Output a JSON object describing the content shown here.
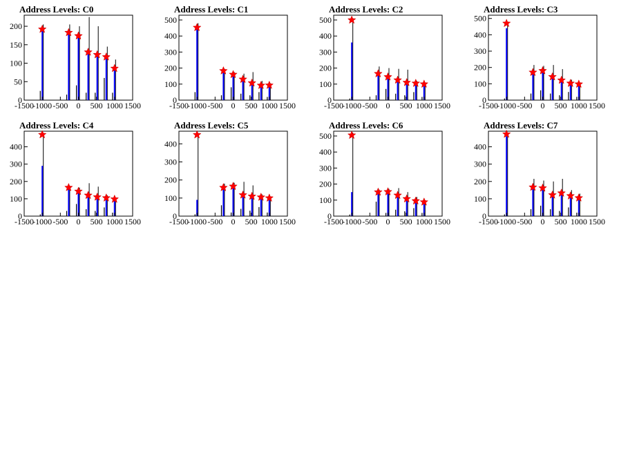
{
  "figure": {
    "background": "#ffffff",
    "histogram_color": "#0000ff",
    "histogram_outline_color": "#000000",
    "peak_marker_color": "#ff0000"
  },
  "chart_data": [
    {
      "type": "bar",
      "title": "Address Levels: C0",
      "xlim": [
        -1500,
        1500
      ],
      "ylim": [
        0,
        230
      ],
      "xticks": [
        -1500,
        -1000,
        -500,
        0,
        500,
        1000,
        1500
      ],
      "yticks": [
        0,
        50,
        100,
        150,
        200
      ],
      "bars": [
        {
          "x": -1000,
          "blue": 190,
          "black": 205,
          "left": 25
        },
        {
          "x": -270,
          "blue": 185,
          "black": 205,
          "left": 15
        },
        {
          "x": 0,
          "blue": 175,
          "black": 200,
          "left": 40
        },
        {
          "x": 270,
          "blue": 130,
          "black": 225,
          "left": 20
        },
        {
          "x": 520,
          "blue": 120,
          "black": 200,
          "left": 20
        },
        {
          "x": 770,
          "blue": 115,
          "black": 145,
          "left": 60
        },
        {
          "x": 1000,
          "blue": 85,
          "black": 110,
          "left": 20
        }
      ],
      "peaks": [
        {
          "x": -1000,
          "y": 192
        },
        {
          "x": -270,
          "y": 183
        },
        {
          "x": 0,
          "y": 174
        },
        {
          "x": 270,
          "y": 130
        },
        {
          "x": 520,
          "y": 123
        },
        {
          "x": 770,
          "y": 117
        },
        {
          "x": 1000,
          "y": 86
        }
      ]
    },
    {
      "type": "bar",
      "title": "Address Levels: C1",
      "xlim": [
        -1500,
        1500
      ],
      "ylim": [
        0,
        530
      ],
      "xticks": [
        -1500,
        -1000,
        -500,
        0,
        500,
        1000,
        1500
      ],
      "yticks": [
        0,
        100,
        200,
        300,
        400,
        500
      ],
      "bars": [
        {
          "x": -1000,
          "blue": 450,
          "black": 480,
          "left": 50
        },
        {
          "x": -270,
          "blue": 175,
          "black": 195,
          "left": 30
        },
        {
          "x": 0,
          "blue": 155,
          "black": 175,
          "left": 80
        },
        {
          "x": 270,
          "blue": 125,
          "black": 165,
          "left": 40
        },
        {
          "x": 520,
          "blue": 100,
          "black": 175,
          "left": 30
        },
        {
          "x": 770,
          "blue": 90,
          "black": 120,
          "left": 50
        },
        {
          "x": 1000,
          "blue": 90,
          "black": 105,
          "left": 20
        }
      ],
      "peaks": [
        {
          "x": -1000,
          "y": 453
        },
        {
          "x": -270,
          "y": 183
        },
        {
          "x": 0,
          "y": 160
        },
        {
          "x": 270,
          "y": 130
        },
        {
          "x": 520,
          "y": 107
        },
        {
          "x": 770,
          "y": 92
        },
        {
          "x": 1000,
          "y": 93
        }
      ]
    },
    {
      "type": "bar",
      "title": "Address Levels: C2",
      "xlim": [
        -1500,
        1500
      ],
      "ylim": [
        0,
        530
      ],
      "xticks": [
        -1500,
        -1000,
        -500,
        0,
        500,
        1000,
        1500
      ],
      "yticks": [
        0,
        100,
        200,
        300,
        400,
        500
      ],
      "bars": [
        {
          "x": -1000,
          "blue": 360,
          "black": 510,
          "left": 10
        },
        {
          "x": -270,
          "blue": 160,
          "black": 210,
          "left": 30
        },
        {
          "x": 0,
          "blue": 140,
          "black": 200,
          "left": 70
        },
        {
          "x": 270,
          "blue": 120,
          "black": 195,
          "left": 40
        },
        {
          "x": 520,
          "blue": 110,
          "black": 190,
          "left": 30
        },
        {
          "x": 770,
          "blue": 100,
          "black": 120,
          "left": 50
        },
        {
          "x": 1000,
          "blue": 95,
          "black": 105,
          "left": 20
        }
      ],
      "peaks": [
        {
          "x": -1000,
          "y": 500
        },
        {
          "x": -270,
          "y": 165
        },
        {
          "x": 0,
          "y": 145
        },
        {
          "x": 270,
          "y": 125
        },
        {
          "x": 520,
          "y": 110
        },
        {
          "x": 770,
          "y": 105
        },
        {
          "x": 1000,
          "y": 100
        }
      ]
    },
    {
      "type": "bar",
      "title": "Address Levels: C3",
      "xlim": [
        -1500,
        1500
      ],
      "ylim": [
        0,
        520
      ],
      "xticks": [
        -1500,
        -1000,
        -500,
        0,
        500,
        1000,
        1500
      ],
      "yticks": [
        0,
        100,
        200,
        300,
        400,
        500
      ],
      "bars": [
        {
          "x": -1000,
          "blue": 440,
          "black": 480,
          "left": 10
        },
        {
          "x": -270,
          "blue": 165,
          "black": 215,
          "left": 40
        },
        {
          "x": 0,
          "blue": 180,
          "black": 210,
          "left": 60
        },
        {
          "x": 270,
          "blue": 140,
          "black": 215,
          "left": 40
        },
        {
          "x": 520,
          "blue": 120,
          "black": 190,
          "left": 30
        },
        {
          "x": 770,
          "blue": 100,
          "black": 125,
          "left": 50
        },
        {
          "x": 1000,
          "blue": 95,
          "black": 105,
          "left": 20
        }
      ],
      "peaks": [
        {
          "x": -1000,
          "y": 470
        },
        {
          "x": -270,
          "y": 170
        },
        {
          "x": 0,
          "y": 180
        },
        {
          "x": 270,
          "y": 143
        },
        {
          "x": 520,
          "y": 122
        },
        {
          "x": 770,
          "y": 103
        },
        {
          "x": 1000,
          "y": 98
        }
      ]
    },
    {
      "type": "bar",
      "title": "Address Levels: C4",
      "xlim": [
        -1500,
        1500
      ],
      "ylim": [
        0,
        490
      ],
      "xticks": [
        -1500,
        -1000,
        -500,
        0,
        500,
        1000,
        1500
      ],
      "yticks": [
        0,
        100,
        200,
        300,
        400
      ],
      "bars": [
        {
          "x": -1000,
          "blue": 290,
          "black": 480,
          "left": 10
        },
        {
          "x": -270,
          "blue": 160,
          "black": 175,
          "left": 30
        },
        {
          "x": 0,
          "blue": 140,
          "black": 165,
          "left": 70
        },
        {
          "x": 270,
          "blue": 120,
          "black": 190,
          "left": 40
        },
        {
          "x": 520,
          "blue": 110,
          "black": 170,
          "left": 30
        },
        {
          "x": 770,
          "blue": 100,
          "black": 120,
          "left": 50
        },
        {
          "x": 1000,
          "blue": 90,
          "black": 105,
          "left": 20
        }
      ],
      "peaks": [
        {
          "x": -1000,
          "y": 470
        },
        {
          "x": -270,
          "y": 165
        },
        {
          "x": 0,
          "y": 143
        },
        {
          "x": 270,
          "y": 120
        },
        {
          "x": 520,
          "y": 110
        },
        {
          "x": 770,
          "y": 105
        },
        {
          "x": 1000,
          "y": 98
        }
      ]
    },
    {
      "type": "bar",
      "title": "Address Levels: C5",
      "xlim": [
        -1500,
        1500
      ],
      "ylim": [
        0,
        470
      ],
      "xticks": [
        -1500,
        -1000,
        -500,
        0,
        500,
        1000,
        1500
      ],
      "yticks": [
        0,
        100,
        200,
        300,
        400
      ],
      "bars": [
        {
          "x": -1000,
          "blue": 90,
          "black": 460,
          "left": 10
        },
        {
          "x": -270,
          "blue": 150,
          "black": 180,
          "left": 60
        },
        {
          "x": 0,
          "blue": 160,
          "black": 185,
          "left": 20
        },
        {
          "x": 270,
          "blue": 110,
          "black": 190,
          "left": 40
        },
        {
          "x": 520,
          "blue": 105,
          "black": 170,
          "left": 30
        },
        {
          "x": 770,
          "blue": 100,
          "black": 120,
          "left": 50
        },
        {
          "x": 1000,
          "blue": 95,
          "black": 105,
          "left": 20
        }
      ],
      "peaks": [
        {
          "x": -1000,
          "y": 450
        },
        {
          "x": -270,
          "y": 158
        },
        {
          "x": 0,
          "y": 165
        },
        {
          "x": 270,
          "y": 117
        },
        {
          "x": 520,
          "y": 110
        },
        {
          "x": 770,
          "y": 105
        },
        {
          "x": 1000,
          "y": 100
        }
      ]
    },
    {
      "type": "bar",
      "title": "Address Levels: C6",
      "xlim": [
        -1500,
        1500
      ],
      "ylim": [
        0,
        530
      ],
      "xticks": [
        -1500,
        -1000,
        -500,
        0,
        500,
        1000,
        1500
      ],
      "yticks": [
        0,
        100,
        200,
        300,
        400,
        500
      ],
      "bars": [
        {
          "x": -1000,
          "blue": 150,
          "black": 520,
          "left": 10
        },
        {
          "x": -270,
          "blue": 140,
          "black": 165,
          "left": 90
        },
        {
          "x": 0,
          "blue": 145,
          "black": 170,
          "left": 20
        },
        {
          "x": 270,
          "blue": 125,
          "black": 175,
          "left": 40
        },
        {
          "x": 520,
          "blue": 100,
          "black": 150,
          "left": 30
        },
        {
          "x": 770,
          "blue": 95,
          "black": 120,
          "left": 50
        },
        {
          "x": 1000,
          "blue": 85,
          "black": 100,
          "left": 20
        }
      ],
      "peaks": [
        {
          "x": -1000,
          "y": 505
        },
        {
          "x": -270,
          "y": 150
        },
        {
          "x": 0,
          "y": 152
        },
        {
          "x": 270,
          "y": 130
        },
        {
          "x": 520,
          "y": 108
        },
        {
          "x": 770,
          "y": 95
        },
        {
          "x": 1000,
          "y": 88
        }
      ]
    },
    {
      "type": "bar",
      "title": "Address Levels: C7",
      "xlim": [
        -1500,
        1500
      ],
      "ylim": [
        0,
        490
      ],
      "xticks": [
        -1500,
        -1000,
        -500,
        0,
        500,
        1000,
        1500
      ],
      "yticks": [
        0,
        100,
        200,
        300,
        400
      ],
      "bars": [
        {
          "x": -1000,
          "blue": 460,
          "black": 480,
          "left": 10
        },
        {
          "x": -270,
          "blue": 165,
          "black": 215,
          "left": 40
        },
        {
          "x": 0,
          "blue": 160,
          "black": 205,
          "left": 60
        },
        {
          "x": 270,
          "blue": 120,
          "black": 200,
          "left": 40
        },
        {
          "x": 520,
          "blue": 135,
          "black": 215,
          "left": 30
        },
        {
          "x": 770,
          "blue": 110,
          "black": 150,
          "left": 50
        },
        {
          "x": 1000,
          "blue": 100,
          "black": 130,
          "left": 20
        }
      ],
      "peaks": [
        {
          "x": -1000,
          "y": 473
        },
        {
          "x": -270,
          "y": 167
        },
        {
          "x": 0,
          "y": 162
        },
        {
          "x": 270,
          "y": 122
        },
        {
          "x": 520,
          "y": 133
        },
        {
          "x": 770,
          "y": 117
        },
        {
          "x": 1000,
          "y": 105
        }
      ]
    }
  ]
}
